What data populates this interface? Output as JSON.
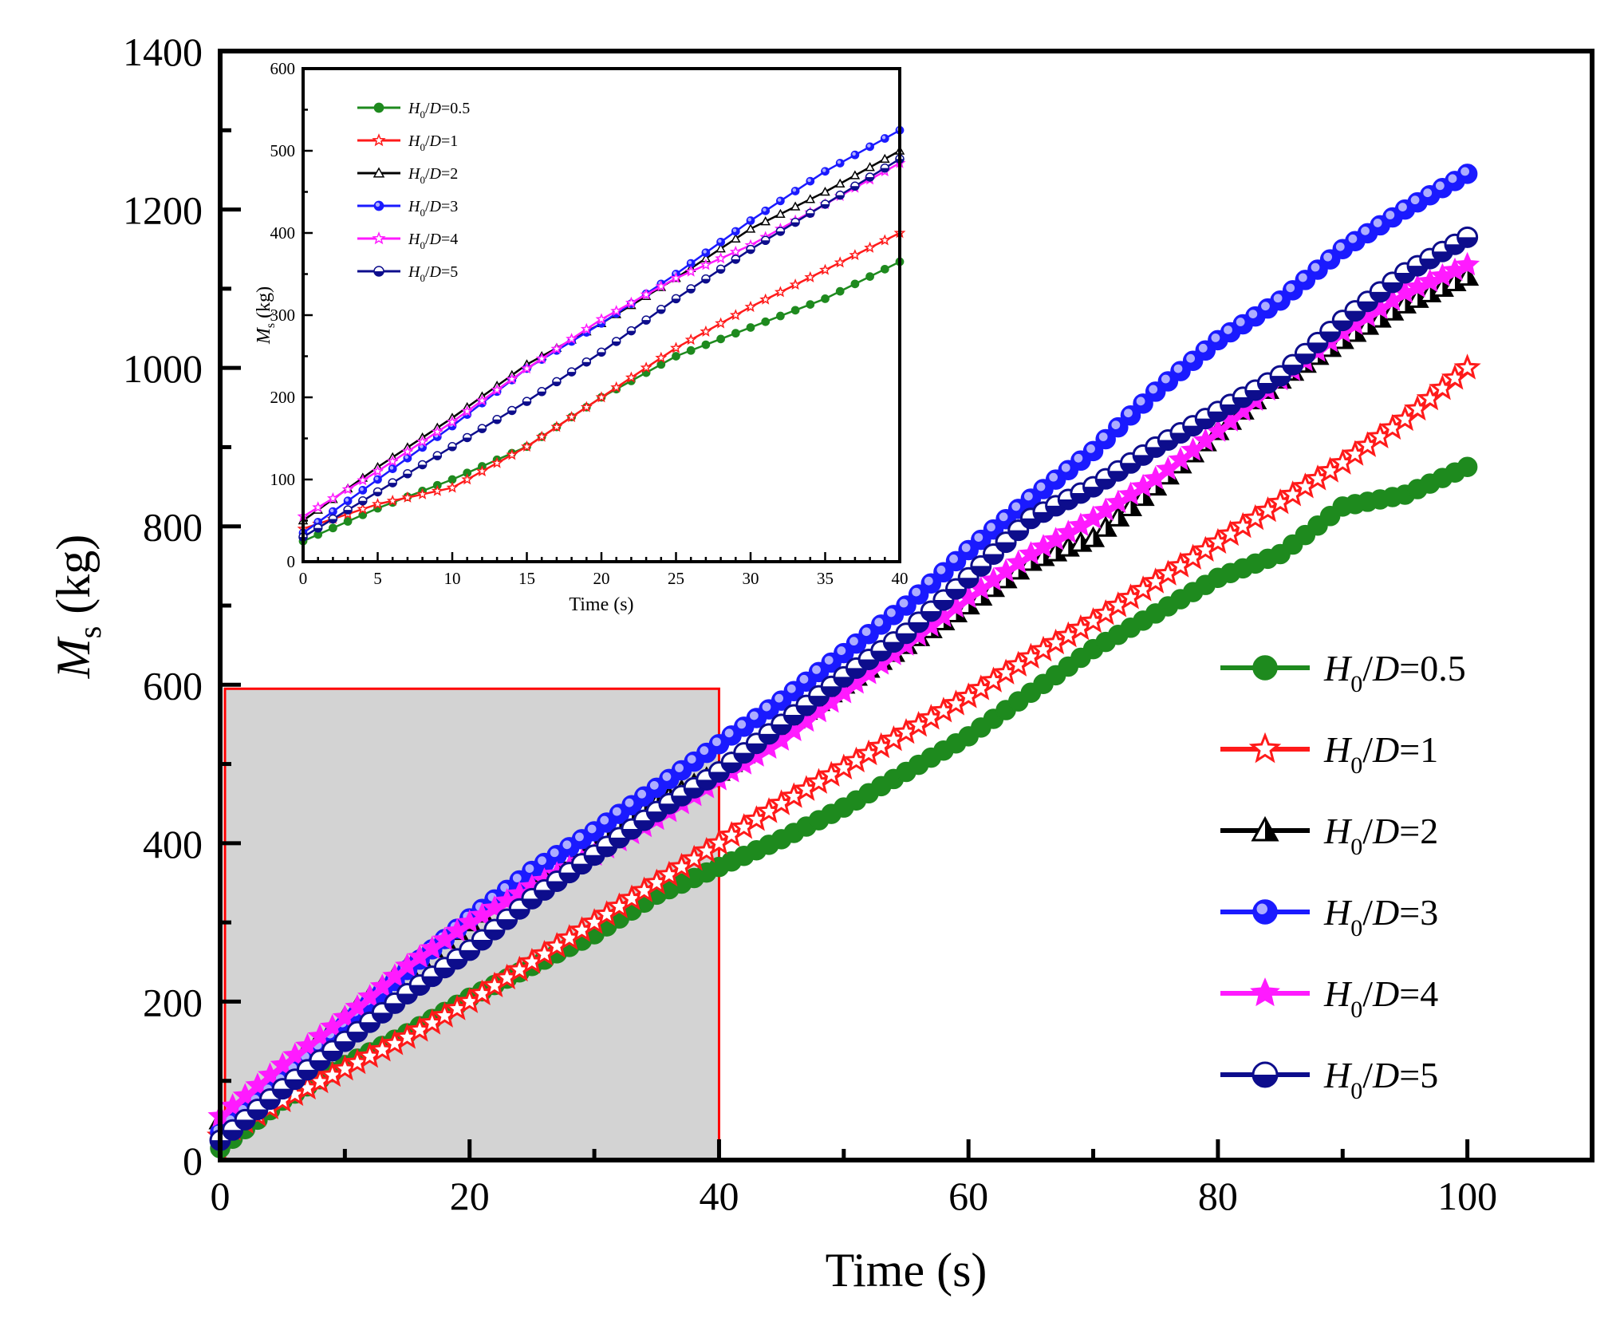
{
  "chart_data": {
    "main": {
      "type": "line",
      "xlabel": "Time (s)",
      "ylabel": {
        "symbol": "M",
        "subscript": "s",
        "unit": "(kg)"
      },
      "xlim": [
        0,
        110
      ],
      "ylim": [
        0,
        1400
      ],
      "xticks": [
        "0",
        "20",
        "40",
        "60",
        "80",
        "100"
      ],
      "yticks": [
        "0",
        "200",
        "400",
        "600",
        "800",
        "1000",
        "1200",
        "1400"
      ],
      "legend_placement": "bottom-right",
      "highlight_region": {
        "x": [
          0,
          40
        ],
        "y": [
          0,
          595
        ],
        "fill": "#d3d3d3",
        "stroke": "#ff0000"
      },
      "series": [
        {
          "name_parts": [
            "H",
            "0",
            "/D=0.5"
          ],
          "color": "#1e8a1e",
          "marker": "filled-circle",
          "x": [
            0,
            5,
            10,
            15,
            20,
            25,
            30,
            35,
            40,
            45,
            50,
            55,
            60,
            65,
            70,
            75,
            80,
            85,
            90,
            95,
            100
          ],
          "y": [
            15,
            75,
            120,
            160,
            205,
            245,
            285,
            335,
            370,
            405,
            445,
            490,
            535,
            590,
            645,
            690,
            735,
            765,
            825,
            840,
            875
          ]
        },
        {
          "name_parts": [
            "H",
            "0",
            "/D=1"
          ],
          "color": "#ff1a1a",
          "marker": "open-star",
          "x": [
            0,
            5,
            10,
            15,
            20,
            25,
            30,
            35,
            40,
            45,
            50,
            55,
            60,
            65,
            70,
            75,
            80,
            85,
            90,
            95,
            100
          ],
          "y": [
            30,
            75,
            115,
            155,
            200,
            250,
            300,
            350,
            400,
            450,
            495,
            540,
            585,
            635,
            680,
            730,
            780,
            830,
            880,
            935,
            1000
          ]
        },
        {
          "name_parts": [
            "H",
            "0",
            "/D=2"
          ],
          "color": "#000000",
          "marker": "filled-triangle",
          "x": [
            0,
            5,
            10,
            15,
            20,
            25,
            30,
            35,
            40,
            45,
            50,
            55,
            60,
            65,
            70,
            75,
            80,
            85,
            90,
            95,
            100
          ],
          "y": [
            50,
            115,
            180,
            245,
            300,
            355,
            405,
            450,
            490,
            545,
            600,
            650,
            700,
            755,
            785,
            850,
            920,
            985,
            1035,
            1080,
            1115
          ]
        },
        {
          "name_parts": [
            "H",
            "0",
            "/D=3"
          ],
          "color": "#1a1aff",
          "marker": "shaded-circle",
          "x": [
            0,
            5,
            10,
            15,
            20,
            25,
            30,
            35,
            40,
            45,
            50,
            55,
            60,
            65,
            70,
            75,
            80,
            85,
            90,
            95,
            100
          ],
          "y": [
            35,
            100,
            170,
            240,
            305,
            365,
            415,
            470,
            525,
            580,
            640,
            700,
            770,
            835,
            895,
            970,
            1035,
            1085,
            1150,
            1200,
            1245
          ]
        },
        {
          "name_parts": [
            "H",
            "0",
            "/D=4"
          ],
          "color": "#ff1aff",
          "marker": "filled-star",
          "x": [
            0,
            5,
            10,
            15,
            20,
            25,
            30,
            35,
            40,
            45,
            50,
            55,
            60,
            65,
            70,
            75,
            80,
            85,
            90,
            95,
            100
          ],
          "y": [
            55,
            120,
            180,
            245,
            300,
            345,
            385,
            430,
            480,
            530,
            590,
            650,
            710,
            765,
            810,
            860,
            920,
            985,
            1045,
            1095,
            1130
          ]
        },
        {
          "name_parts": [
            "H",
            "0",
            "/D=5"
          ],
          "color": "#0d0d8c",
          "marker": "half-circle",
          "x": [
            0,
            5,
            10,
            15,
            20,
            25,
            30,
            35,
            40,
            45,
            50,
            55,
            60,
            65,
            70,
            75,
            80,
            85,
            90,
            95,
            100
          ],
          "y": [
            25,
            90,
            150,
            210,
            265,
            330,
            385,
            440,
            490,
            550,
            610,
            665,
            735,
            810,
            850,
            900,
            945,
            990,
            1060,
            1120,
            1165
          ]
        }
      ]
    },
    "inset": {
      "type": "line",
      "xlabel": "Time (s)",
      "ylabel": {
        "symbol": "M",
        "subscript": "s",
        "unit": "(kg)"
      },
      "xlim": [
        0,
        40
      ],
      "ylim": [
        0,
        600
      ],
      "xticks": [
        "0",
        "5",
        "10",
        "15",
        "20",
        "25",
        "30",
        "35",
        "40"
      ],
      "yticks": [
        "0",
        "100",
        "200",
        "300",
        "400",
        "500",
        "600"
      ],
      "legend_placement": "top-left",
      "series": [
        {
          "name_parts": [
            "H",
            "0",
            "/D=0.5"
          ],
          "color": "#1e8a1e",
          "marker": "filled-circle",
          "x": [
            0,
            5,
            10,
            15,
            20,
            25,
            30,
            35,
            40
          ],
          "y": [
            25,
            65,
            100,
            140,
            200,
            250,
            285,
            320,
            365
          ]
        },
        {
          "name_parts": [
            "H",
            "0",
            "/D=1"
          ],
          "color": "#ff1a1a",
          "marker": "open-star",
          "x": [
            0,
            5,
            10,
            15,
            20,
            25,
            30,
            35,
            40
          ],
          "y": [
            40,
            70,
            90,
            140,
            200,
            260,
            310,
            355,
            400
          ]
        },
        {
          "name_parts": [
            "H",
            "0",
            "/D=2"
          ],
          "color": "#000000",
          "marker": "open-triangle",
          "x": [
            0,
            5,
            10,
            15,
            20,
            25,
            30,
            35,
            40
          ],
          "y": [
            50,
            115,
            175,
            240,
            290,
            345,
            405,
            450,
            500
          ]
        },
        {
          "name_parts": [
            "H",
            "0",
            "/D=3"
          ],
          "color": "#1a1aff",
          "marker": "shaded-circle",
          "x": [
            0,
            5,
            10,
            15,
            20,
            25,
            30,
            35,
            40
          ],
          "y": [
            35,
            100,
            165,
            235,
            290,
            350,
            415,
            475,
            525
          ]
        },
        {
          "name_parts": [
            "H",
            "0",
            "/D=4"
          ],
          "color": "#ff1aff",
          "marker": "open-star",
          "x": [
            0,
            5,
            10,
            15,
            20,
            25,
            30,
            35,
            40
          ],
          "y": [
            55,
            110,
            170,
            235,
            295,
            345,
            385,
            435,
            485
          ]
        },
        {
          "name_parts": [
            "H",
            "0",
            "/D=5"
          ],
          "color": "#0d0d8c",
          "marker": "half-circle",
          "x": [
            0,
            5,
            10,
            15,
            20,
            25,
            30,
            35,
            40
          ],
          "y": [
            30,
            85,
            140,
            195,
            255,
            320,
            380,
            435,
            490
          ]
        }
      ]
    }
  }
}
